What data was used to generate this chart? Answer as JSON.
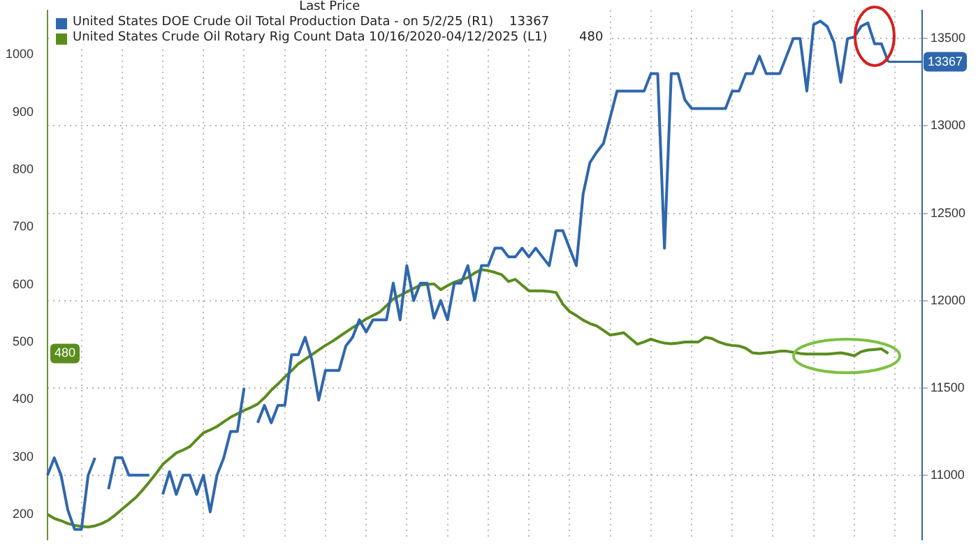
{
  "chart_data": {
    "type": "line",
    "legend_title": "Last Price",
    "categories": [
      null,
      null,
      null,
      null,
      null,
      null,
      null,
      null,
      null,
      null,
      null,
      null,
      null,
      null,
      null,
      null,
      null,
      null,
      null,
      null,
      null,
      null,
      null,
      null,
      null,
      null,
      null,
      null,
      null,
      null,
      null,
      null,
      null,
      null,
      null,
      null,
      null,
      null,
      null,
      null,
      null,
      null,
      null,
      null,
      null,
      null,
      null,
      null,
      null,
      null,
      null,
      null,
      null,
      null,
      null,
      null,
      null,
      null,
      null,
      null,
      null,
      null,
      null,
      null,
      null,
      null,
      null,
      null,
      null,
      null,
      null,
      null,
      null,
      null,
      null,
      null,
      null,
      null,
      null,
      null,
      null,
      null,
      null,
      null,
      null,
      null,
      null,
      null,
      null,
      null,
      null,
      null,
      null,
      null,
      null,
      null,
      null,
      null,
      null,
      null,
      null,
      null,
      null,
      null,
      null,
      null,
      null,
      null,
      null,
      null,
      null,
      null,
      null,
      null,
      null,
      null,
      null,
      null,
      null,
      null,
      null,
      null,
      null,
      null,
      null,
      null,
      null,
      null,
      null,
      null
    ],
    "series": [
      {
        "name": "United States DOE Crude Oil Total Production Data - on 5/2/25 (R1)",
        "color": "#2f67ad",
        "axis": "y2",
        "values": [
          11000,
          11100,
          11000,
          10800,
          10690,
          10690,
          11000,
          11100,
          null,
          10920,
          11100,
          11100,
          11000,
          11000,
          11000,
          11000,
          null,
          10890,
          11020,
          10890,
          11000,
          11000,
          10890,
          11000,
          10790,
          11000,
          11100,
          11250,
          11250,
          11500,
          null,
          11300,
          11400,
          11300,
          11400,
          11400,
          11690,
          11690,
          11790,
          11660,
          11430,
          11600,
          11600,
          11600,
          11740,
          11790,
          11890,
          11820,
          11890,
          11890,
          11890,
          12100,
          11890,
          12200,
          12000,
          12100,
          12100,
          11900,
          12000,
          11890,
          12100,
          12100,
          12200,
          12000,
          12200,
          12200,
          12300,
          12300,
          12250,
          12250,
          12300,
          12250,
          12300,
          12250,
          12200,
          12400,
          12400,
          12300,
          12200,
          12610,
          12790,
          12850,
          12900,
          13050,
          13200,
          13200,
          13200,
          13200,
          13200,
          13300,
          13300,
          12300,
          13300,
          13300,
          13150,
          13100,
          13100,
          13100,
          13100,
          13100,
          13100,
          13200,
          13200,
          13300,
          13300,
          13400,
          13300,
          13300,
          13300,
          13400,
          13500,
          13500,
          13200,
          13580,
          13600,
          13570,
          13480,
          13250,
          13500,
          13510,
          13570,
          13590,
          13470,
          13470,
          13367,
          null,
          null,
          null,
          null,
          null
        ]
      },
      {
        "name": "United States Crude Oil Rotary Rig Count Data 10/16/2020-04/12/2025 (L1)",
        "color": "#5b8c1e",
        "values": [
          200,
          193,
          189,
          184,
          181,
          179,
          178,
          180,
          184,
          190,
          199,
          209,
          219,
          229,
          242,
          256,
          271,
          287,
          297,
          307,
          312,
          318,
          330,
          342,
          347,
          353,
          361,
          369,
          375,
          381,
          386,
          392,
          403,
          416,
          427,
          439,
          450,
          462,
          470,
          478,
          486,
          494,
          501,
          509,
          517,
          525,
          532,
          540,
          546,
          552,
          563,
          575,
          581,
          587,
          593,
          599,
          600,
          601,
          591,
          598,
          604,
          608,
          612,
          620,
          626,
          624,
          621,
          617,
          605,
          609,
          599,
          589,
          589,
          589,
          588,
          586,
          566,
          553,
          546,
          538,
          532,
          528,
          520,
          512,
          514,
          516,
          506,
          496,
          500,
          505,
          501,
          498,
          497,
          498,
          500,
          500,
          500,
          508,
          506,
          500,
          496,
          494,
          493,
          489,
          481,
          480,
          481,
          482,
          484,
          484,
          482,
          480,
          479,
          479,
          479,
          479,
          480,
          481,
          479,
          476,
          483,
          486,
          487,
          488,
          480,
          null,
          null,
          null,
          null,
          null
        ]
      }
    ],
    "ylim": [
      156,
      1077
    ],
    "yticks": [
      200,
      300,
      400,
      500,
      600,
      700,
      800,
      900,
      1000
    ],
    "y2lim": [
      10631,
      13662
    ],
    "y2ticks": [
      11000,
      11500,
      12000,
      12500,
      13000,
      13500
    ],
    "annotations": [
      "13367",
      "480"
    ],
    "grid": true,
    "legend": "top left",
    "tick_labels": "y",
    "marker": "none",
    "line_style": "solid"
  }
}
